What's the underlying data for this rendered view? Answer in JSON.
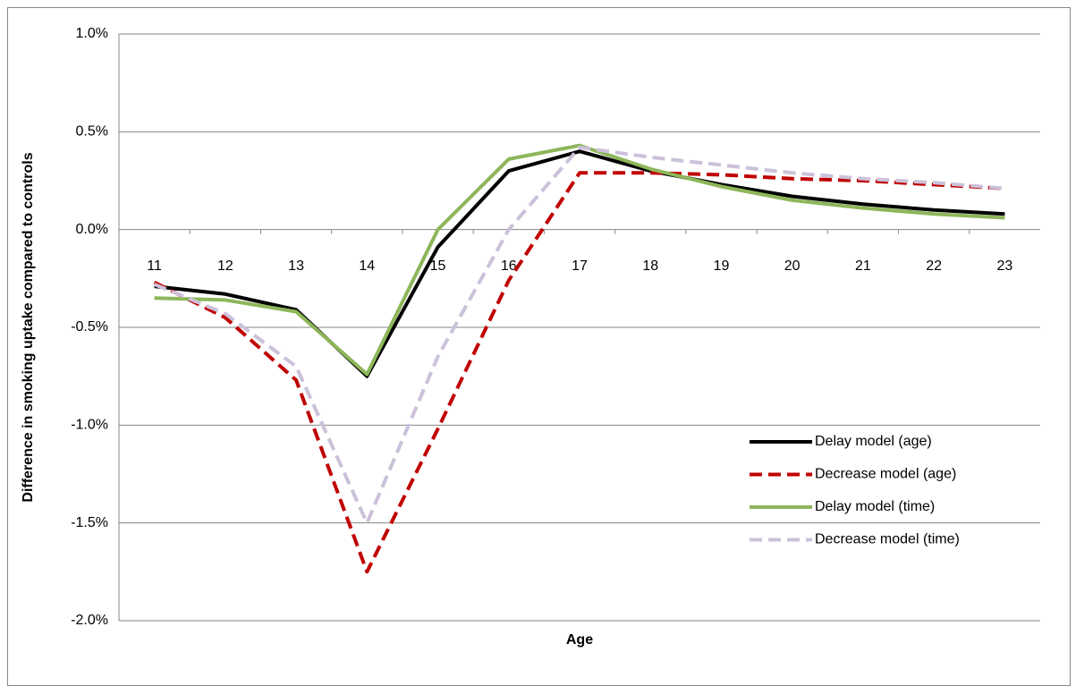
{
  "chart_data": {
    "type": "line",
    "x_label": "Age",
    "y_label": "Difference in smoking uptake compared to controls",
    "categories": [
      "11",
      "12",
      "13",
      "14",
      "15",
      "16",
      "17",
      "18",
      "19",
      "20",
      "21",
      "22",
      "23"
    ],
    "series": [
      {
        "name": "Delay model (age)",
        "color": "#000000",
        "dashed": false,
        "values": [
          -0.29,
          -0.33,
          -0.41,
          -0.75,
          -0.09,
          0.3,
          0.4,
          0.3,
          0.23,
          0.17,
          0.13,
          0.1,
          0.08
        ]
      },
      {
        "name": "Decrease model (age)",
        "color": "#c00000",
        "dashed": true,
        "values": [
          -0.27,
          -0.45,
          -0.77,
          -1.75,
          -1.02,
          -0.26,
          0.29,
          0.29,
          0.28,
          0.26,
          0.25,
          0.23,
          0.21
        ]
      },
      {
        "name": "Delay model (time)",
        "color": "#8db65a",
        "dashed": false,
        "values": [
          -0.35,
          -0.36,
          -0.42,
          -0.74,
          0.0,
          0.36,
          0.43,
          0.31,
          0.22,
          0.15,
          0.11,
          0.08,
          0.06
        ]
      },
      {
        "name": "Decrease model (time)",
        "color": "#ccc1da",
        "dashed": true,
        "values": [
          -0.28,
          -0.43,
          -0.7,
          -1.5,
          -0.65,
          0.0,
          0.42,
          0.37,
          0.33,
          0.29,
          0.26,
          0.24,
          0.21
        ]
      }
    ],
    "ylim": [
      -2.0,
      1.0
    ],
    "yticks": [
      {
        "value": -2.0,
        "label": "-2.0%"
      },
      {
        "value": -1.5,
        "label": "-1.5%"
      },
      {
        "value": -1.0,
        "label": "-1.0%"
      },
      {
        "value": -0.5,
        "label": "-0.5%"
      },
      {
        "value": 0.0,
        "label": "0.0%"
      },
      {
        "value": 0.5,
        "label": "0.5%"
      },
      {
        "value": 1.0,
        "label": "1.0%"
      }
    ],
    "grid": true,
    "legend": "right"
  }
}
